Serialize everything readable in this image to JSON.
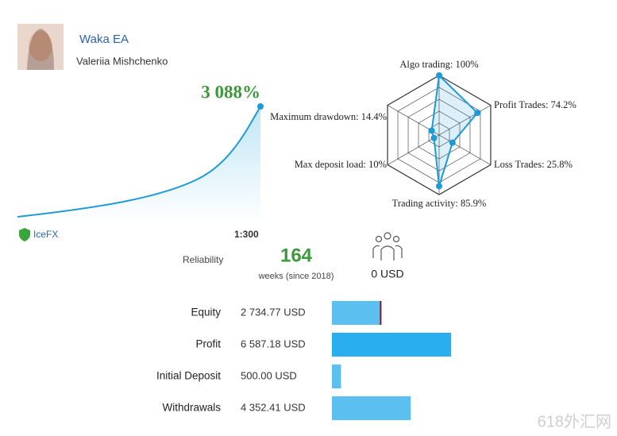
{
  "header": {
    "name": "Waka EA",
    "author": "Valeriia Mishchenko",
    "growth": "3 088%"
  },
  "radar": {
    "axes": [
      {
        "label": "Algo trading: 100%",
        "value": 100
      },
      {
        "label": "Profit Trades: 74.2%",
        "value": 74.2
      },
      {
        "label": "Loss Trades: 25.8%",
        "value": 25.8
      },
      {
        "label": "Trading activity: 85.9%",
        "value": 85.9
      },
      {
        "label": "Max deposit load: 10%",
        "value": 10
      },
      {
        "label": "Maximum drawdown: 14.4%",
        "value": 14.4
      }
    ]
  },
  "info": {
    "broker": "IceFX",
    "leverage": "1:300",
    "reliability": "Reliability",
    "weeks": "164",
    "weeks_note": "weeks (since 2018)",
    "subscribers_cost": "0 USD"
  },
  "funds": [
    {
      "name": "Equity",
      "value": 2734.77,
      "label": "2 734.77 USD"
    },
    {
      "name": "Profit",
      "value": 6587.18,
      "label": "6 587.18 USD"
    },
    {
      "name": "Initial Deposit",
      "value": 500.0,
      "label": "500.00 USD"
    },
    {
      "name": "Withdrawals",
      "value": 4352.41,
      "label": "4 352.41 USD"
    }
  ],
  "watermark": "618外汇网"
}
